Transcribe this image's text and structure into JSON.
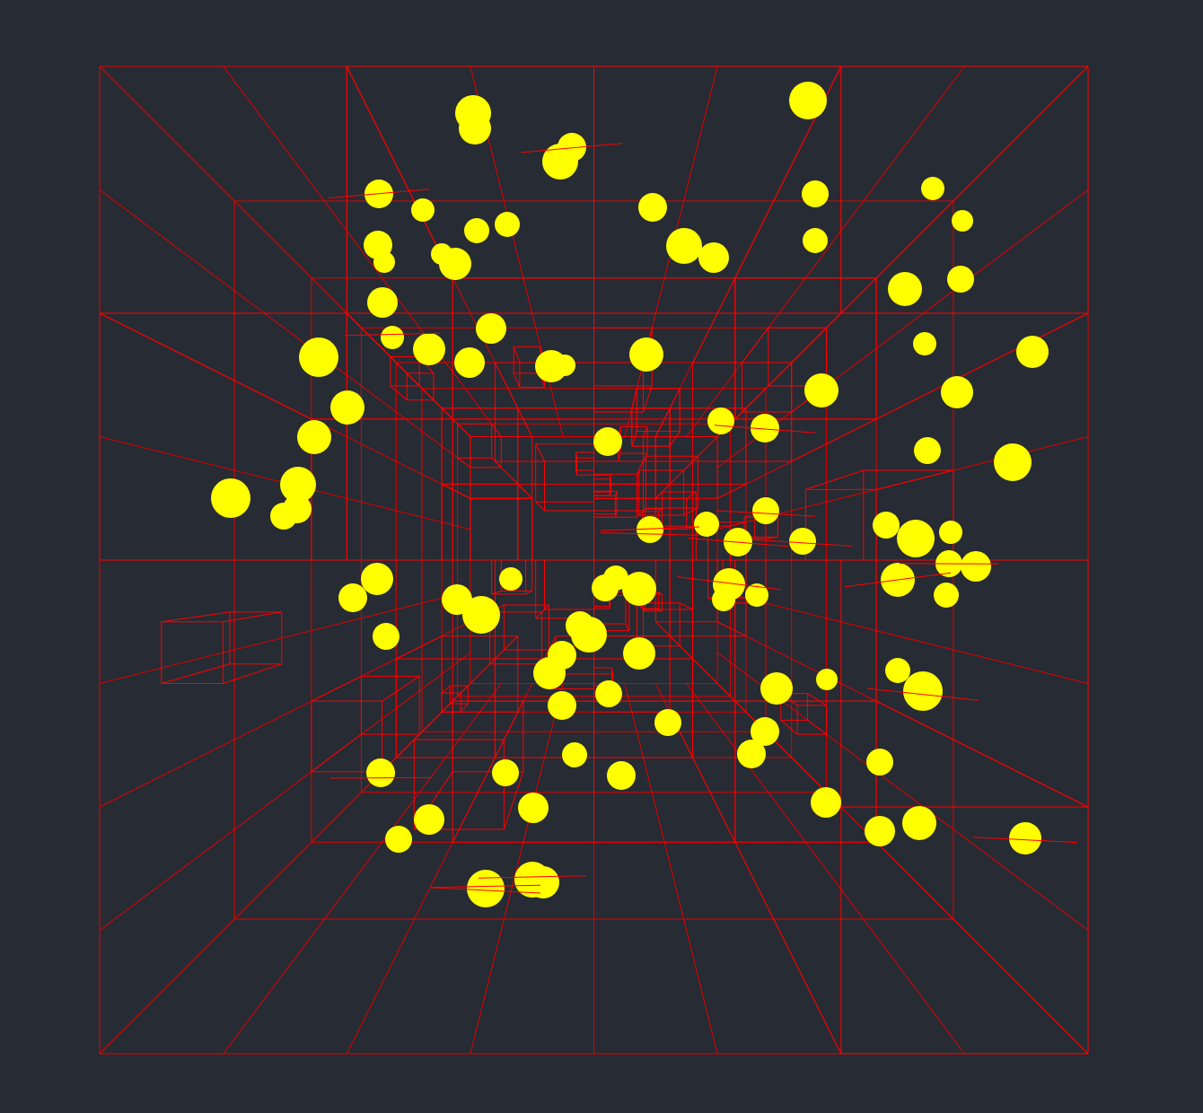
{
  "scene": {
    "background": "#272b33",
    "wire_color": "#ff0000",
    "sphere_color": "#ffff00",
    "sphere_count": 96,
    "room_divisions": 8,
    "wireframe_box_count": 60
  }
}
